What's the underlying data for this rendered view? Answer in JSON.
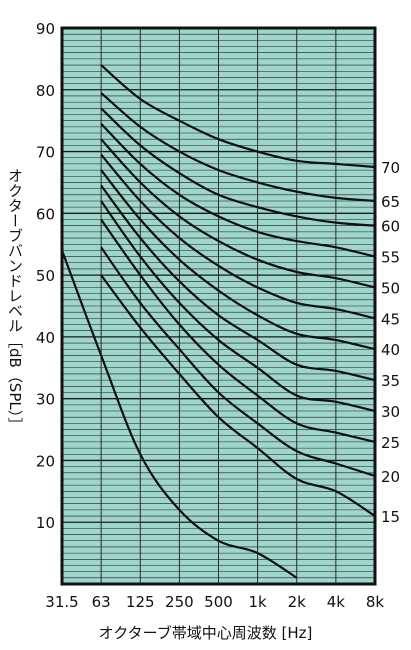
{
  "chart_data": {
    "type": "line",
    "title": "",
    "xlabel": "オクターブ帯域中心周波数 [Hz]",
    "ylabel": "オクターブバンドレベル［dB（SPL）］",
    "x_scale": "log2-octave",
    "x_ticks": [
      "31.5",
      "63",
      "125",
      "250",
      "500",
      "1k",
      "2k",
      "4k",
      "8k"
    ],
    "ylim": [
      0,
      90
    ],
    "y_ticks": [
      10,
      20,
      30,
      40,
      50,
      60,
      70,
      80,
      90
    ],
    "grid": true,
    "background_color": "#9fd6cc",
    "line_color": "#111111",
    "curve_label_side": "right",
    "threshold_curve": {
      "x": [
        "31.5",
        "63",
        "125",
        "250",
        "500",
        "1k",
        "2k"
      ],
      "y": [
        54,
        37,
        21,
        12,
        7,
        5,
        1
      ]
    },
    "series": [
      {
        "name": "70",
        "values": [
          84,
          78.5,
          75,
          72,
          70,
          68.5,
          68
        ]
      },
      {
        "name": "65",
        "values": [
          79.5,
          74,
          70,
          67,
          65,
          63.5,
          62.5
        ]
      },
      {
        "name": "60",
        "values": [
          77,
          71,
          66.5,
          63,
          61,
          59.5,
          58.5
        ]
      },
      {
        "name": "55",
        "values": [
          74.5,
          68,
          63,
          59.5,
          57,
          55.5,
          54.5
        ]
      },
      {
        "name": "50",
        "values": [
          72,
          65,
          59.5,
          55.5,
          52.5,
          50.5,
          49.5
        ]
      },
      {
        "name": "45",
        "values": [
          69.5,
          62,
          56,
          51.5,
          48,
          45.5,
          44.5
        ]
      },
      {
        "name": "40",
        "values": [
          67,
          59,
          52.5,
          47.5,
          43.5,
          40.5,
          39.5
        ]
      },
      {
        "name": "35",
        "values": [
          64.5,
          56,
          49,
          43.5,
          39.5,
          35.5,
          34.5
        ]
      },
      {
        "name": "30",
        "values": [
          62,
          53,
          45.5,
          39.5,
          35,
          30.5,
          29.5
        ]
      },
      {
        "name": "25",
        "values": [
          59,
          50,
          42,
          35.5,
          30.5,
          26,
          24.5
        ]
      },
      {
        "name": "20",
        "values": [
          54.5,
          45.5,
          38,
          31,
          26,
          21.5,
          19.5
        ]
      },
      {
        "name": "15",
        "values": [
          50,
          41.5,
          34,
          27,
          22,
          17,
          15
        ]
      }
    ],
    "series_x": [
      "63",
      "125",
      "250",
      "500",
      "1k",
      "2k",
      "4k"
    ],
    "series_end": [
      67.5,
      62,
      58,
      53,
      48,
      43,
      38,
      33,
      28,
      23,
      17.5,
      11
    ]
  }
}
